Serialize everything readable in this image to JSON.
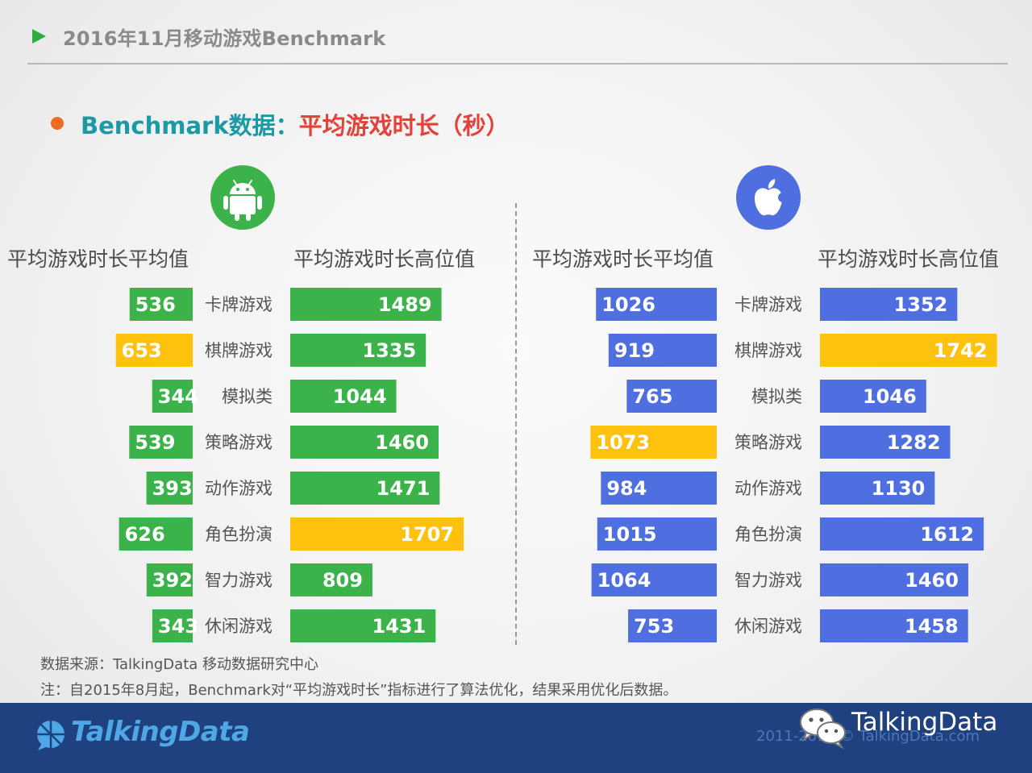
{
  "header": {
    "title": "2016年11月移动游戏Benchmark"
  },
  "subtitle": {
    "part1": "Benchmark数据：",
    "part2": "平均游戏时长（秒）"
  },
  "icons": {
    "android": "android-icon",
    "apple": "apple-icon"
  },
  "column_headers": {
    "android_avg": "平均游戏时长平均值",
    "android_high": "平均游戏时长高位值",
    "ios_avg": "平均游戏时长平均值",
    "ios_high": "平均游戏时长高位值"
  },
  "chart_data": {
    "type": "bar",
    "categories": [
      "卡牌游戏",
      "棋牌游戏",
      "模拟类",
      "策略游戏",
      "动作游戏",
      "角色扮演",
      "智力游戏",
      "休闲游戏"
    ],
    "colors": {
      "android": "#3bb34a",
      "ios": "#4f6fe0",
      "highlight": "#fec10e"
    },
    "series": [
      {
        "platform": "android",
        "measure": "avg",
        "values": [
          536,
          653,
          344,
          539,
          393,
          626,
          392,
          343
        ],
        "highlight_index": 1
      },
      {
        "platform": "android",
        "measure": "high",
        "values": [
          1489,
          1335,
          1044,
          1460,
          1471,
          1707,
          809,
          1431
        ],
        "highlight_index": 5
      },
      {
        "platform": "ios",
        "measure": "avg",
        "values": [
          1026,
          919,
          765,
          1073,
          984,
          1015,
          1064,
          753
        ],
        "highlight_index": 3
      },
      {
        "platform": "ios",
        "measure": "high",
        "values": [
          1352,
          1742,
          1046,
          1282,
          1130,
          1612,
          1460,
          1458
        ],
        "highlight_index": 1
      }
    ]
  },
  "notes": {
    "source": "数据来源：TalkingData 移动数据研究中心",
    "remark": "注：自2015年8月起，Benchmark对“平均游戏时长”指标进行了算法优化，结果采用优化后数据。"
  },
  "footer": {
    "brand": "TalkingData",
    "copyright": "2011-2016 © TalkingData.com",
    "wechat_label": "TalkingData"
  }
}
